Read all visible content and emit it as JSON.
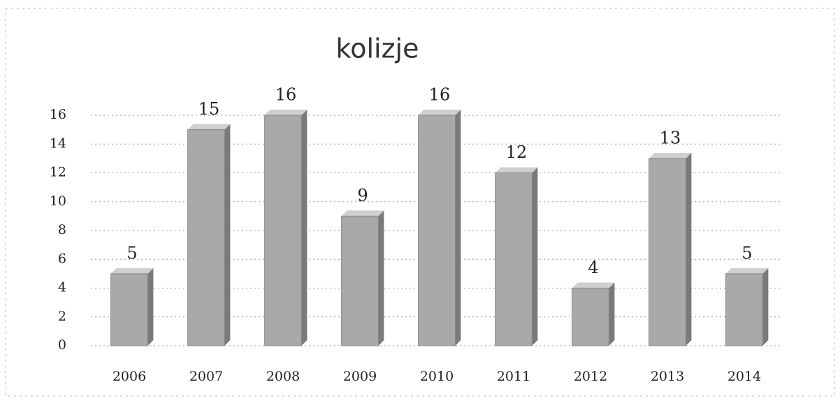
{
  "chart_data": {
    "type": "bar",
    "title": "kolizje",
    "categories": [
      "2006",
      "2007",
      "2008",
      "2009",
      "2010",
      "2011",
      "2012",
      "2013",
      "2014"
    ],
    "values": [
      5,
      15,
      16,
      9,
      16,
      12,
      4,
      13,
      5
    ],
    "color": "#a9a9a9",
    "ylim": [
      0,
      16
    ],
    "yticks": [
      0,
      2,
      4,
      6,
      8,
      10,
      12,
      14,
      16
    ],
    "grid": true
  }
}
